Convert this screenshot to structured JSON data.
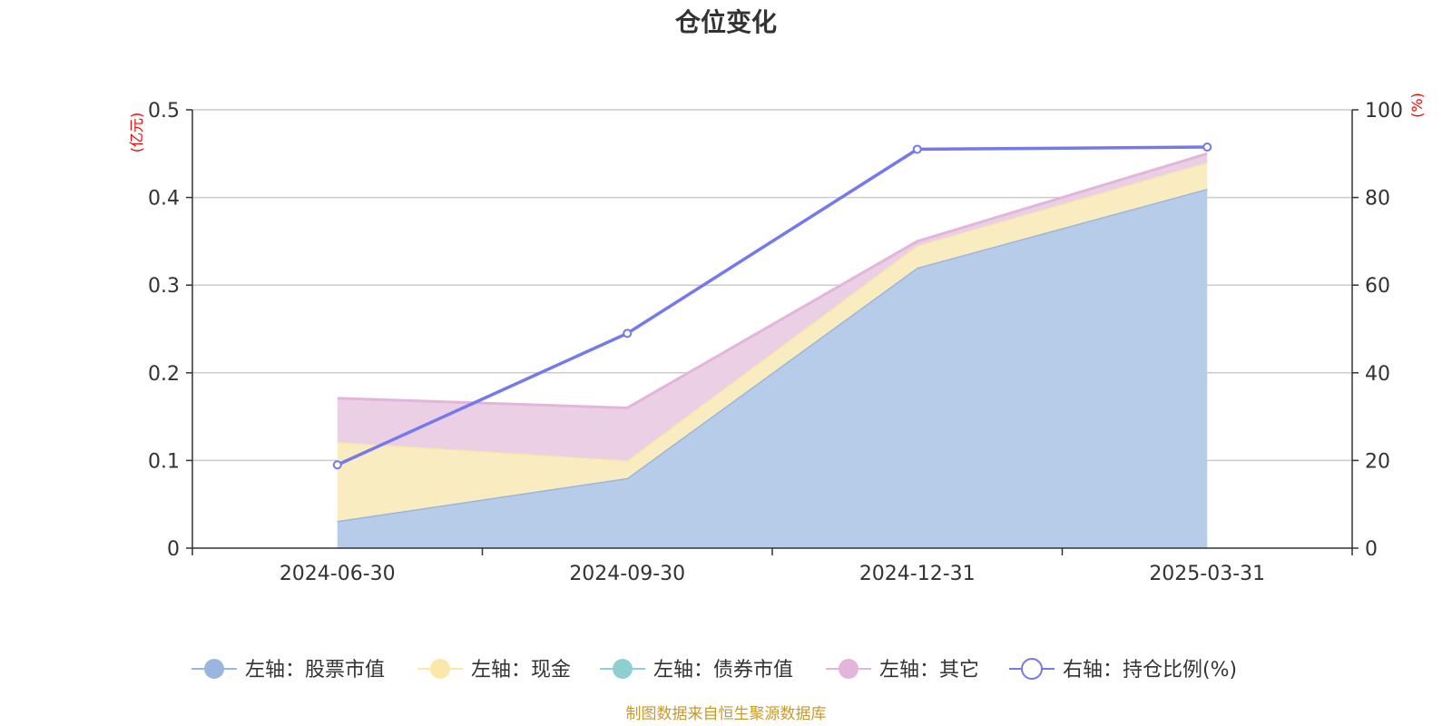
{
  "chart_data": {
    "type": "area",
    "title": "仓位变化",
    "categories": [
      "2024-06-30",
      "2024-09-30",
      "2024-12-31",
      "2025-03-31"
    ],
    "left_axis": {
      "unit": "(亿元)",
      "ylim": [
        0,
        0.5
      ],
      "ticks": [
        "0",
        "0.1",
        "0.2",
        "0.3",
        "0.4",
        "0.5"
      ],
      "tick_values": [
        0,
        0.1,
        0.2,
        0.3,
        0.4,
        0.5
      ]
    },
    "right_axis": {
      "unit": "(%)",
      "ylim": [
        0,
        100
      ],
      "ticks": [
        "0",
        "20",
        "40",
        "60",
        "80",
        "100"
      ],
      "tick_values": [
        0,
        20,
        40,
        60,
        80,
        100
      ]
    },
    "stacked_series": [
      {
        "name": "左轴：股票市值",
        "values": [
          0.031,
          0.08,
          0.32,
          0.41
        ],
        "fill": "#b6cce9",
        "stroke": "#9ab6e0",
        "marker": "#9ab6e0"
      },
      {
        "name": "左轴：现金",
        "values": [
          0.09,
          0.02,
          0.025,
          0.03
        ],
        "fill": "#f9ecc0",
        "stroke": "#f9e8a7",
        "marker": "#f9e8a7"
      },
      {
        "name": "左轴：债券市值",
        "values": [
          0,
          0,
          0,
          0
        ],
        "fill": "#a4d8d8",
        "stroke": "#8ed0d0",
        "marker": "#8ed0d0"
      },
      {
        "name": "左轴：其它",
        "values": [
          0.05,
          0.06,
          0.005,
          0.01
        ],
        "fill": "#ebcfe5",
        "stroke": "#e3b5da",
        "marker": "#e3b5da"
      }
    ],
    "line_series": {
      "name": "右轴：持仓比例(%)",
      "values": [
        19.0,
        49.0,
        91.0,
        91.5
      ],
      "color": "#7479ee"
    },
    "legend_position": "bottom",
    "grid": true
  },
  "source_note": "制图数据来自恒生聚源数据库",
  "colors": {
    "axis": "#333333",
    "grid": "#cccccc",
    "unit": "#ff0000",
    "source": "#c9992a"
  }
}
